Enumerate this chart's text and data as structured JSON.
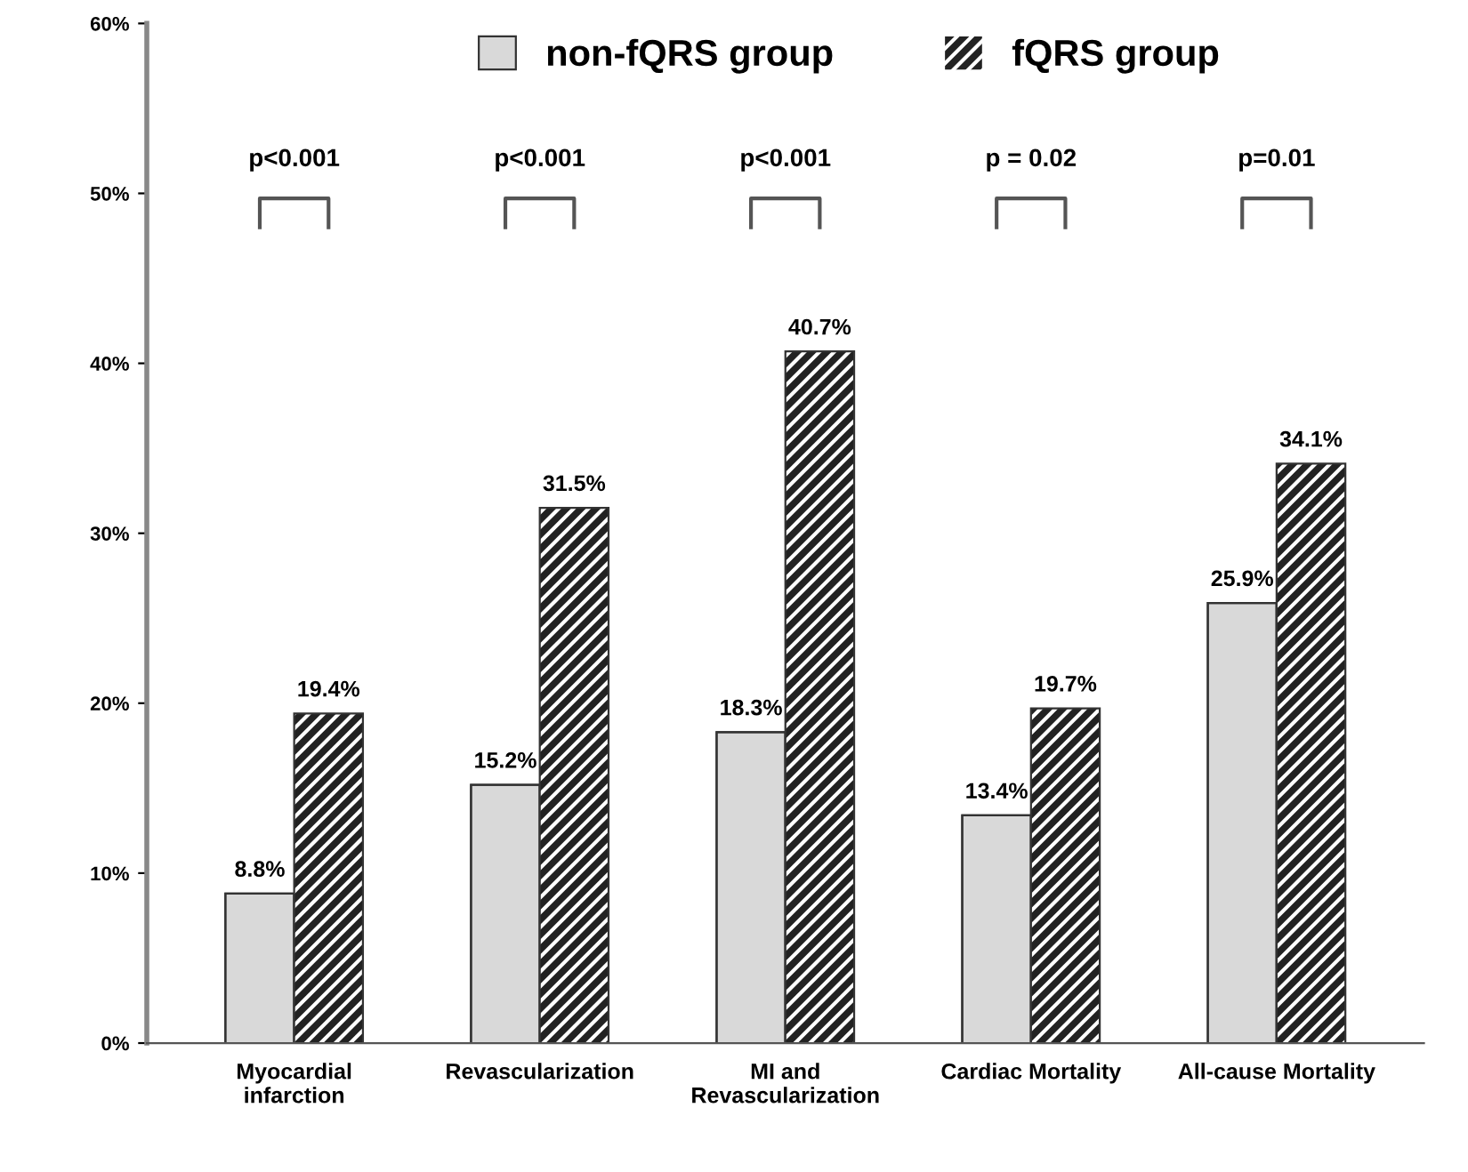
{
  "chart_data": {
    "type": "bar",
    "categories": [
      "Myocardial\ninfarction",
      "Revascularization",
      "MI and\nRevascularization",
      "Cardiac Mortality",
      "All-cause Mortality"
    ],
    "series": [
      {
        "name": "non-fQRS group",
        "color": "#d9d9d9",
        "values": [
          8.8,
          15.2,
          18.3,
          13.4,
          25.9
        ],
        "value_labels": [
          "8.8%",
          "15.2%",
          "18.3%",
          "13.4%",
          "25.9%"
        ]
      },
      {
        "name": "fQRS group",
        "color": "#222222",
        "values": [
          19.4,
          31.5,
          40.7,
          19.7,
          34.1
        ],
        "value_labels": [
          "19.4%",
          "31.5%",
          "40.7%",
          "19.7%",
          "34.1%"
        ]
      }
    ],
    "ylim": [
      0,
      60
    ],
    "yticks": [
      {
        "value": 0,
        "label": "0%"
      },
      {
        "value": 10,
        "label": "10%"
      },
      {
        "value": 20,
        "label": "20%"
      },
      {
        "value": 30,
        "label": "30%"
      },
      {
        "value": 40,
        "label": "40%"
      },
      {
        "value": 50,
        "label": "50%"
      },
      {
        "value": 60,
        "label": "60%"
      }
    ],
    "annotations": [
      "p<0.001",
      "p<0.001",
      "p<0.001",
      "p = 0.02",
      "p=0.01"
    ],
    "legend": "top",
    "grid": false
  }
}
